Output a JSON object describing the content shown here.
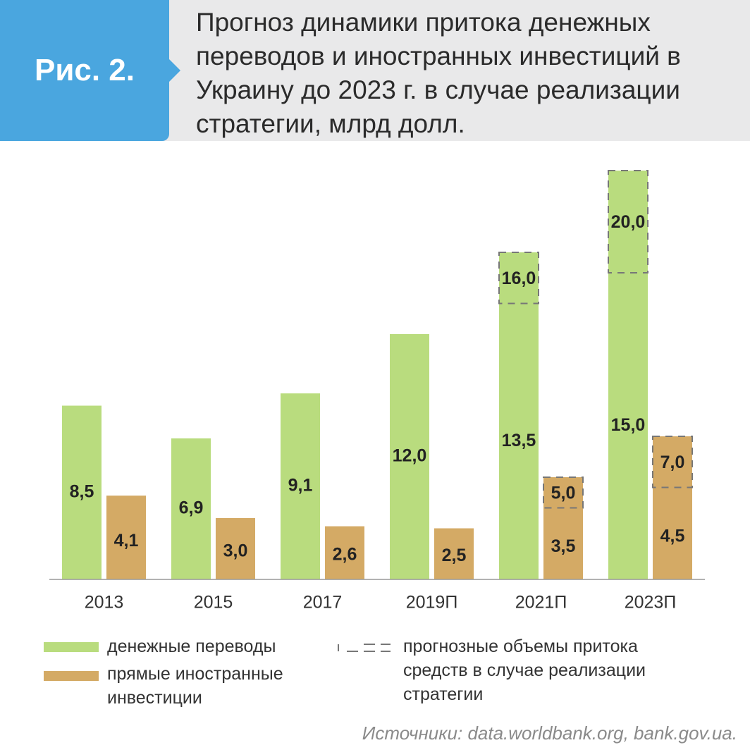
{
  "figure_label": "Рис. 2.",
  "title": "Прогноз динамики притока денежных переводов и иностранных инвестиций в Украину до 2023 г. в случае реализации стратегии, млрд долл.",
  "source": "Источники: data.worldbank.org, bank.gov.ua.",
  "colors": {
    "remittances": "#b9dc7e",
    "fdi": "#d4aa65",
    "forecast_dash": "#777777",
    "axis": "#999999",
    "header": "#4aa6df"
  },
  "legend": {
    "remittances": "денежные переводы",
    "fdi": "прямые иностранные инвестиции",
    "forecast": "прогнозные объемы притока средств в случае реализации стратегии"
  },
  "chart_data": {
    "type": "bar",
    "categories": [
      "2013",
      "2015",
      "2017",
      "2019П",
      "2021П",
      "2023П"
    ],
    "series": [
      {
        "name": "денежные переводы",
        "values": [
          8.5,
          6.9,
          9.1,
          12.0,
          13.5,
          15.0
        ],
        "labels": [
          "8,5",
          "6,9",
          "9,1",
          "12,0",
          "13,5",
          "15,0"
        ],
        "forecast_values": [
          null,
          null,
          null,
          null,
          16.0,
          20.0
        ],
        "forecast_labels": [
          null,
          null,
          null,
          null,
          "16,0",
          "20,0"
        ]
      },
      {
        "name": "прямые иностранные инвестиции",
        "values": [
          4.1,
          3.0,
          2.6,
          2.5,
          3.5,
          4.5
        ],
        "labels": [
          "4,1",
          "3,0",
          "2,6",
          "2,5",
          "3,5",
          "4,5"
        ],
        "forecast_values": [
          null,
          null,
          null,
          null,
          5.0,
          7.0
        ],
        "forecast_labels": [
          null,
          null,
          null,
          null,
          "5,0",
          "7,0"
        ]
      }
    ],
    "ylim": [
      0,
      20.0
    ],
    "grid": false
  }
}
